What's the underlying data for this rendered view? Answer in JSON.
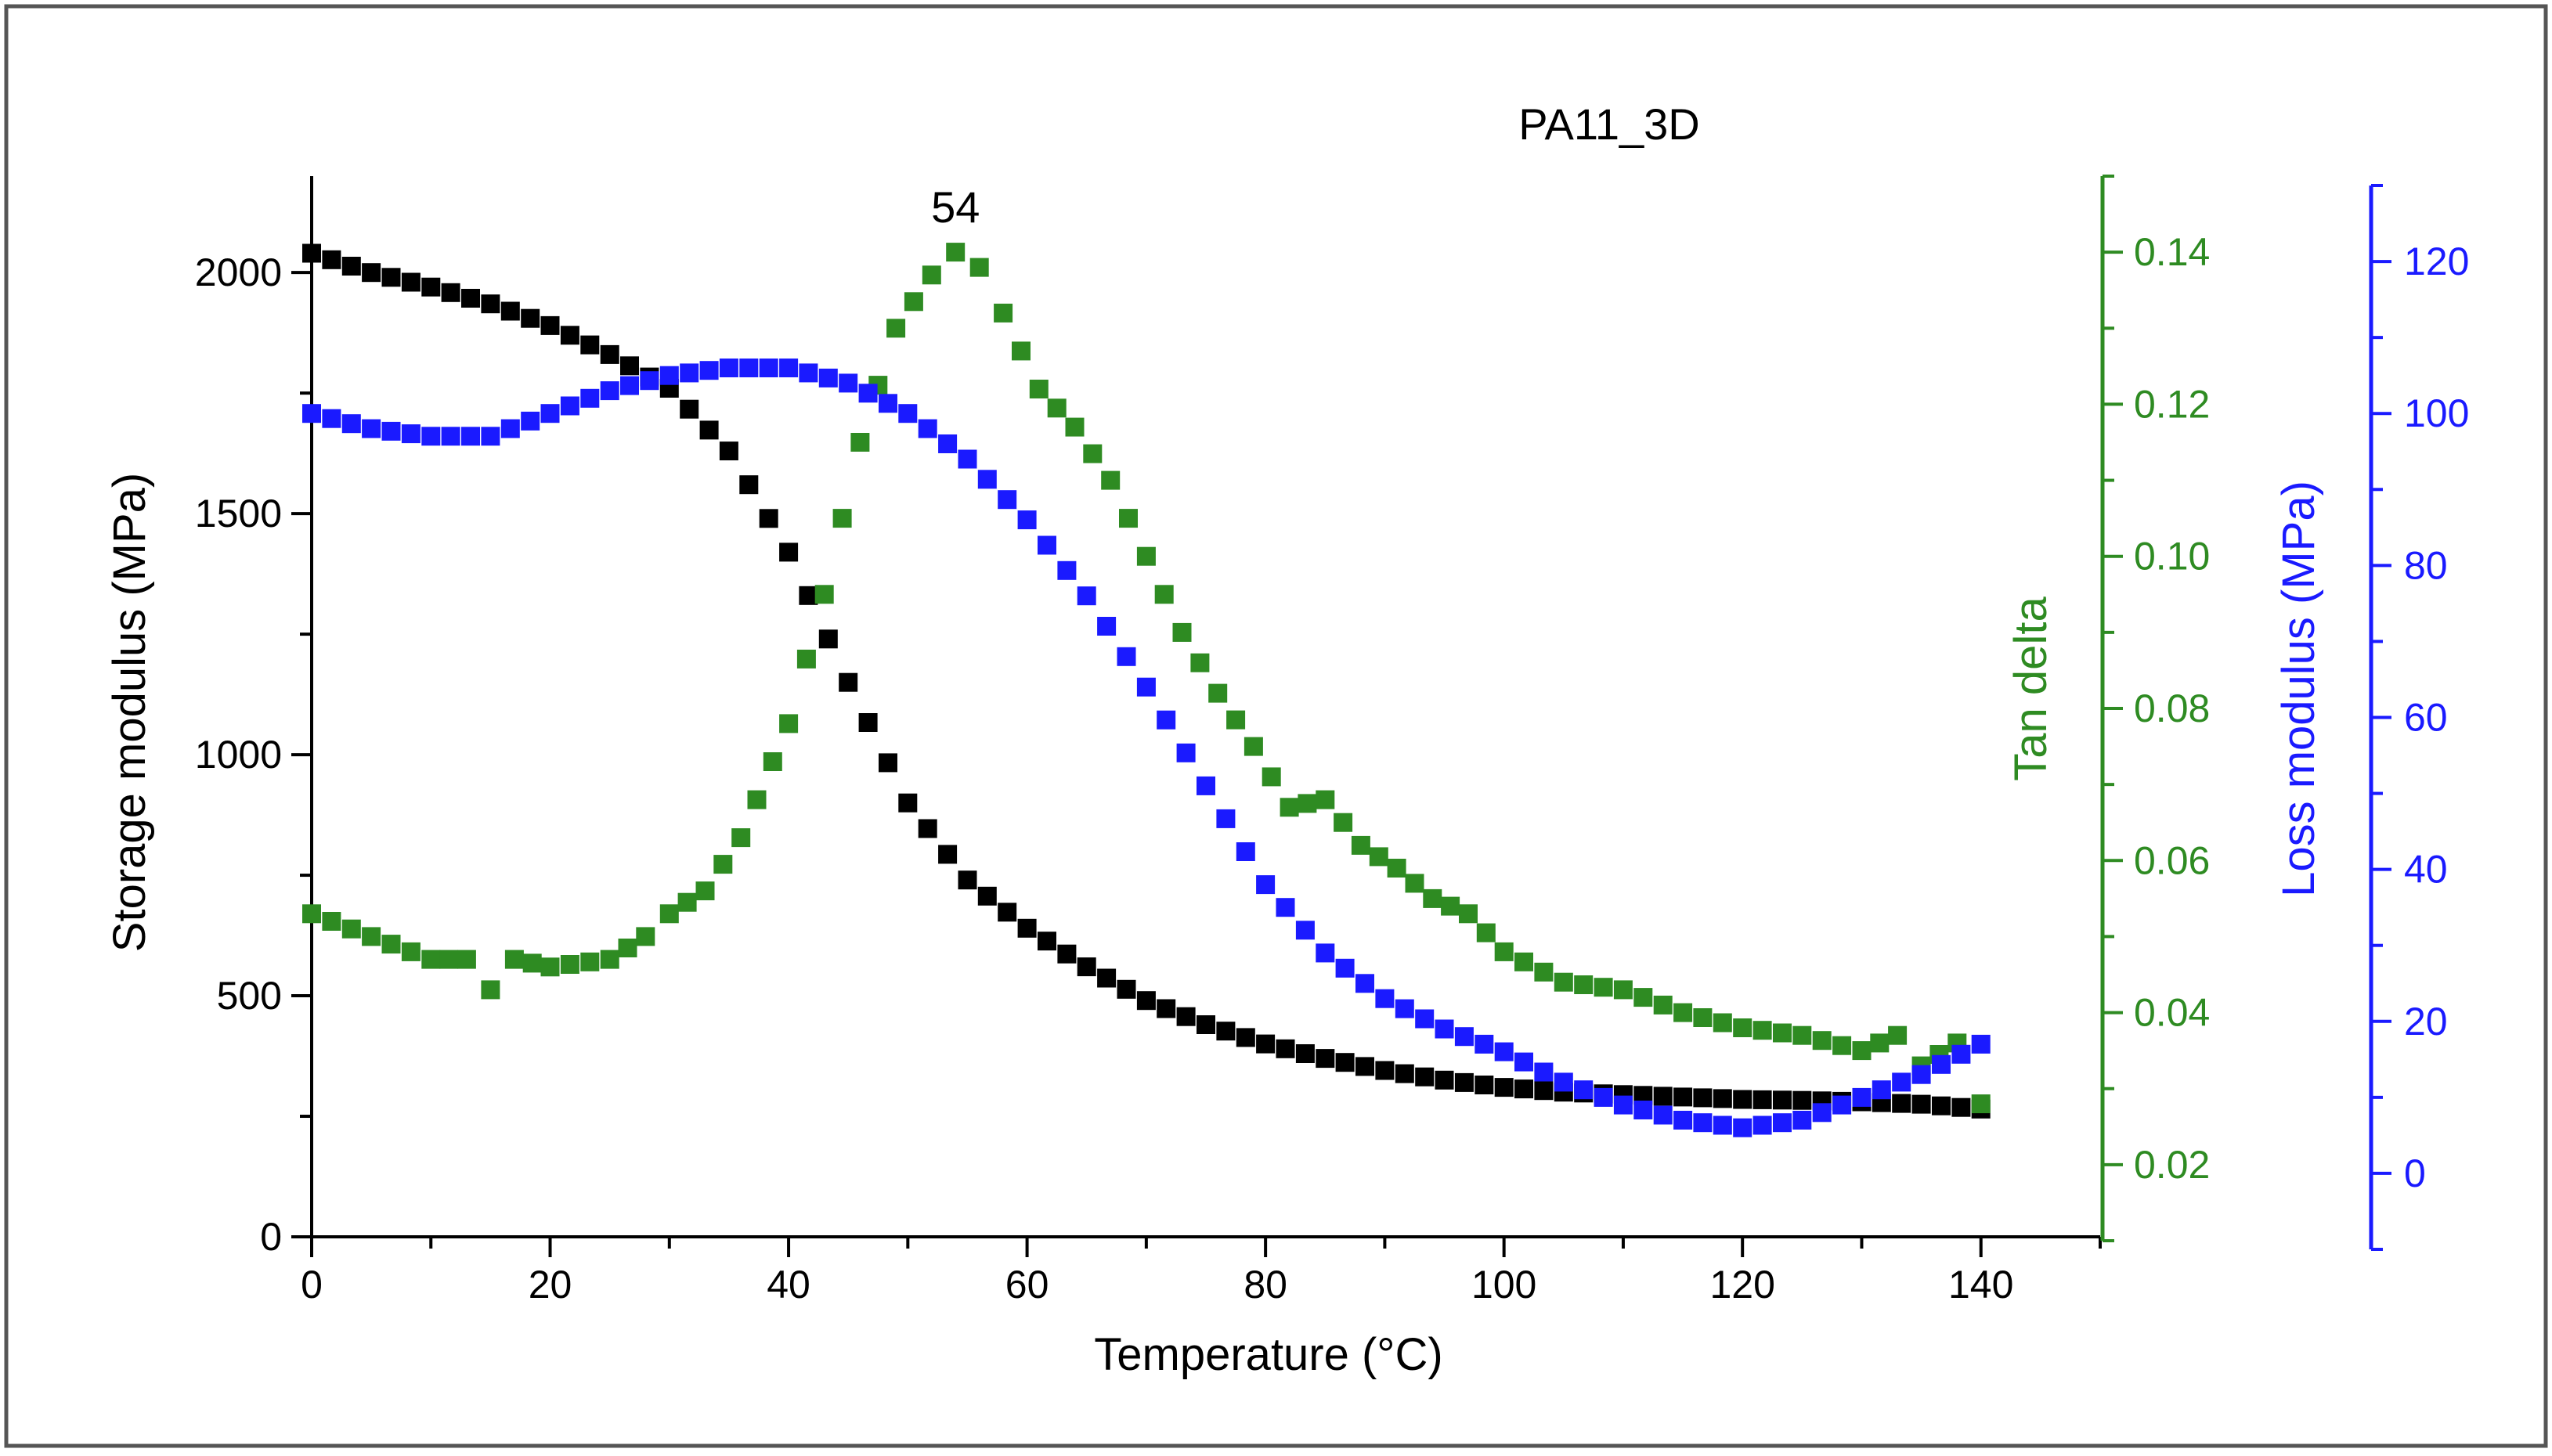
{
  "chart_data": {
    "type": "scatter",
    "title": "PA11_3D",
    "xlabel": "Temperature (°C)",
    "xlim": [
      0,
      150
    ],
    "x_ticks": [
      0,
      20,
      40,
      60,
      80,
      100,
      120,
      140
    ],
    "axes": {
      "storage": {
        "label": "Storage modulus (MPa)",
        "range": [
          0,
          2200
        ],
        "ticks": [
          0,
          500,
          1000,
          1500,
          2000
        ],
        "side": "left",
        "color": "#000000"
      },
      "tan_delta": {
        "label": "Tan delta",
        "range": [
          0.01,
          0.15
        ],
        "ticks": [
          "0.02",
          "0.04",
          "0.06",
          "0.08",
          "0.10",
          "0.12",
          "0.14"
        ],
        "side": "right",
        "color": "#2e8b22"
      },
      "loss": {
        "label": "Loss modulus (MPa)",
        "range": [
          -10,
          130
        ],
        "ticks": [
          0,
          20,
          40,
          60,
          80,
          100,
          120
        ],
        "side": "right-outer",
        "color": "#1a1aff"
      }
    },
    "annotation": {
      "text": "54",
      "x": 54,
      "y": 0.14,
      "axis": "tan_delta"
    },
    "series": [
      {
        "name": "Storage modulus",
        "axis": "storage",
        "color": "#000000",
        "x": [
          0,
          5,
          10,
          15,
          20,
          25,
          30,
          35,
          40,
          45,
          50,
          55,
          60,
          65,
          70,
          75,
          80,
          85,
          90,
          95,
          100,
          105,
          110,
          115,
          120,
          125,
          130,
          135,
          140
        ],
        "y": [
          2040,
          2000,
          1970,
          1935,
          1890,
          1830,
          1760,
          1630,
          1420,
          1150,
          900,
          740,
          640,
          560,
          490,
          440,
          400,
          370,
          345,
          325,
          310,
          300,
          295,
          290,
          285,
          283,
          280,
          275,
          265
        ]
      },
      {
        "name": "Tan delta",
        "axis": "tan_delta",
        "color": "#2e8b22",
        "x": [
          0,
          5,
          10,
          13,
          15,
          17,
          20,
          25,
          28,
          30,
          33,
          36,
          40,
          43,
          46,
          49,
          52,
          54,
          56,
          58,
          61,
          64,
          67,
          70,
          73,
          76,
          79,
          82,
          85,
          88,
          91,
          94,
          97,
          100,
          105,
          110,
          115,
          120,
          125,
          130,
          133,
          135,
          138,
          140
        ],
        "y": [
          0.053,
          0.05,
          0.047,
          0.047,
          0.043,
          0.047,
          0.046,
          0.047,
          0.05,
          0.053,
          0.056,
          0.063,
          0.078,
          0.095,
          0.115,
          0.13,
          0.137,
          0.14,
          0.138,
          0.132,
          0.122,
          0.117,
          0.11,
          0.1,
          0.09,
          0.082,
          0.075,
          0.067,
          0.068,
          0.062,
          0.059,
          0.055,
          0.053,
          0.048,
          0.044,
          0.043,
          0.04,
          0.038,
          0.037,
          0.035,
          0.037,
          0.033,
          0.036,
          0.028
        ]
      },
      {
        "name": "Loss modulus",
        "axis": "loss",
        "color": "#1a1aff",
        "x": [
          0,
          5,
          10,
          15,
          20,
          25,
          30,
          35,
          40,
          45,
          50,
          55,
          60,
          65,
          70,
          75,
          80,
          85,
          90,
          95,
          100,
          105,
          110,
          115,
          120,
          125,
          130,
          135,
          140
        ],
        "y": [
          100,
          98,
          97,
          97,
          100,
          103,
          105,
          106,
          106,
          104,
          100,
          94,
          86,
          76,
          64,
          51,
          38,
          29,
          23,
          19,
          16,
          12,
          9,
          7,
          6,
          7,
          10,
          13,
          17
        ]
      }
    ]
  }
}
